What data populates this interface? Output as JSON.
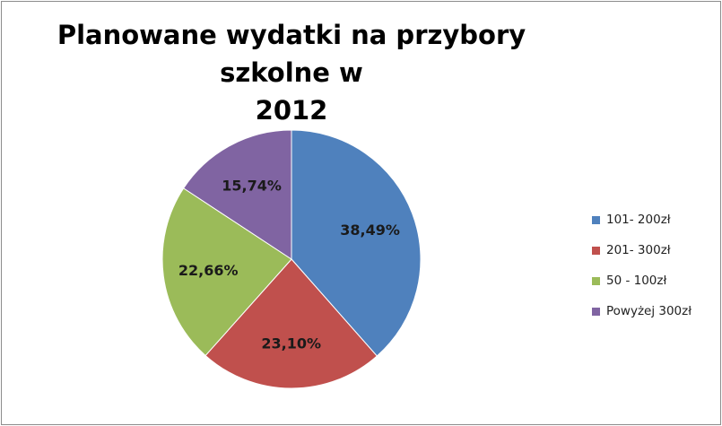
{
  "chart_data": {
    "type": "pie",
    "title_lines": [
      "Planowane wydatki na przybory szkolne w",
      "2012"
    ],
    "start": "top",
    "direction": "clockwise",
    "slices": [
      {
        "label": "101- 200zł",
        "value": 38.49,
        "data_label": "38,49%",
        "color": "#4F81BD"
      },
      {
        "label": "201- 300zł",
        "value": 23.1,
        "data_label": "23,10%",
        "color": "#C0504D"
      },
      {
        "label": "50 - 100zł",
        "value": 22.66,
        "data_label": "22,66%",
        "color": "#9BBB59"
      },
      {
        "label": "Powyżej 300zł",
        "value": 15.74,
        "data_label": "15,74%",
        "color": "#8064A2"
      }
    ],
    "legend_position": "right"
  }
}
